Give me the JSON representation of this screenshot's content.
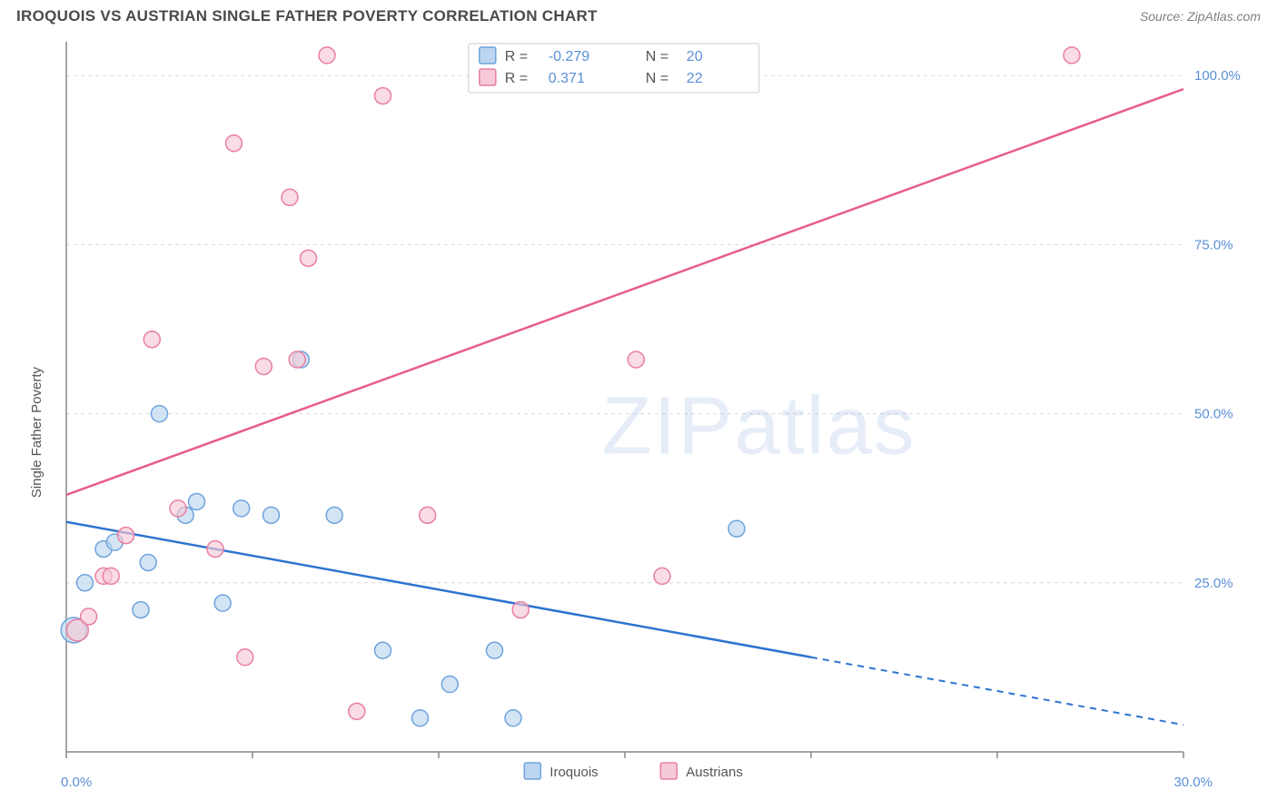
{
  "title": "IROQUOIS VS AUSTRIAN SINGLE FATHER POVERTY CORRELATION CHART",
  "source": "Source: ZipAtlas.com",
  "watermark": "ZIPatlas",
  "y_axis_label": "Single Father Poverty",
  "chart": {
    "type": "scatter",
    "xlim": [
      0,
      30
    ],
    "ylim": [
      0,
      105
    ],
    "x_ticks": [
      0,
      5,
      10,
      15,
      20,
      25,
      30
    ],
    "x_tick_labels": [
      "0.0%",
      "",
      "",
      "",
      "",
      "",
      "30.0%"
    ],
    "y_ticks": [
      25,
      50,
      75,
      100
    ],
    "y_tick_labels": [
      "25.0%",
      "50.0%",
      "75.0%",
      "100.0%"
    ],
    "grid_color": "#d9d9d9",
    "axis_color": "#888888",
    "background_color": "#ffffff",
    "series": [
      {
        "name": "Iroquois",
        "marker_fill": "#bcd5f0",
        "marker_stroke": "#6fa3dd",
        "line_color": "#2e74d0",
        "R": "-0.279",
        "N": "20",
        "trend": {
          "x1": 0,
          "y1": 34,
          "x2": 30,
          "y2": 4,
          "solid_until_x": 20
        },
        "points": [
          {
            "x": 0.2,
            "y": 18,
            "r": 14
          },
          {
            "x": 0.5,
            "y": 25
          },
          {
            "x": 1.0,
            "y": 30
          },
          {
            "x": 1.3,
            "y": 31
          },
          {
            "x": 2.0,
            "y": 21
          },
          {
            "x": 2.2,
            "y": 28
          },
          {
            "x": 2.5,
            "y": 50
          },
          {
            "x": 3.2,
            "y": 35
          },
          {
            "x": 3.5,
            "y": 37
          },
          {
            "x": 4.2,
            "y": 22
          },
          {
            "x": 4.7,
            "y": 36
          },
          {
            "x": 5.5,
            "y": 35
          },
          {
            "x": 6.3,
            "y": 58
          },
          {
            "x": 7.2,
            "y": 35
          },
          {
            "x": 8.5,
            "y": 15
          },
          {
            "x": 9.5,
            "y": 5
          },
          {
            "x": 10.3,
            "y": 10
          },
          {
            "x": 11.5,
            "y": 15
          },
          {
            "x": 12.0,
            "y": 5
          },
          {
            "x": 18.0,
            "y": 33
          }
        ]
      },
      {
        "name": "Austrians",
        "marker_fill": "#f6c9d6",
        "marker_stroke": "#e97fa3",
        "line_color": "#e75d8a",
        "R": "0.371",
        "N": "22",
        "trend": {
          "x1": 0,
          "y1": 38,
          "x2": 30,
          "y2": 98,
          "solid_until_x": 30
        },
        "points": [
          {
            "x": 0.3,
            "y": 18,
            "r": 12
          },
          {
            "x": 0.6,
            "y": 20
          },
          {
            "x": 1.0,
            "y": 26
          },
          {
            "x": 1.2,
            "y": 26
          },
          {
            "x": 1.6,
            "y": 32
          },
          {
            "x": 2.3,
            "y": 61
          },
          {
            "x": 3.0,
            "y": 36
          },
          {
            "x": 4.0,
            "y": 30
          },
          {
            "x": 4.5,
            "y": 90
          },
          {
            "x": 4.8,
            "y": 14
          },
          {
            "x": 5.3,
            "y": 57
          },
          {
            "x": 6.0,
            "y": 82
          },
          {
            "x": 6.2,
            "y": 58
          },
          {
            "x": 6.5,
            "y": 73
          },
          {
            "x": 7.0,
            "y": 103
          },
          {
            "x": 7.8,
            "y": 6
          },
          {
            "x": 8.5,
            "y": 97
          },
          {
            "x": 9.7,
            "y": 35
          },
          {
            "x": 12.2,
            "y": 21
          },
          {
            "x": 15.3,
            "y": 58
          },
          {
            "x": 16.0,
            "y": 26
          },
          {
            "x": 27.0,
            "y": 103
          }
        ]
      }
    ]
  },
  "legend_top": {
    "r_label": "R =",
    "n_label": "N ="
  },
  "legend_bottom": {
    "items": [
      "Iroquois",
      "Austrians"
    ]
  }
}
